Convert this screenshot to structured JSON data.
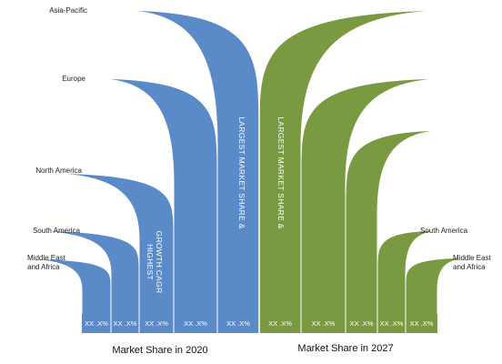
{
  "chart_data": {
    "type": "bar",
    "colors": {
      "year_2020": "#5b8ac9",
      "year_2027": "#7a9a41"
    },
    "series": [
      {
        "name": "Market Share in 2020",
        "categories": [
          "Middle East and Africa",
          "South America",
          "North America",
          "Europe",
          "Asia-Pacific"
        ],
        "value_labels": [
          "XX .X%",
          "XX .X%",
          "XX .X%",
          "XX .X%",
          "XX .X%"
        ],
        "relative_heights": [
          0.2,
          0.29,
          0.5,
          0.83,
          1.0
        ],
        "annotations": {
          "North America": "HIGHEST GROWTH CAGR",
          "Asia-Pacific": "LARGEST MARKET SHARE &"
        }
      },
      {
        "name": "Market Share in 2027",
        "categories": [
          "Asia-Pacific",
          "Europe",
          "North America",
          "South America",
          "Middle East and Africa"
        ],
        "value_labels": [
          "XX .X%",
          "XX .X%",
          "XX .X%",
          "XX .X%",
          "XX .X%"
        ],
        "relative_heights": [
          1.0,
          0.71,
          0.57,
          0.29,
          0.21
        ],
        "annotations": {
          "Asia-Pacific": "LARGEST MARKET SHARE &"
        }
      }
    ],
    "region_labels_left": [
      "Asia-Pacific",
      "Europe",
      "North America",
      "South America",
      "Middle East\nand Africa"
    ],
    "region_labels_right": [
      "South America",
      "Middle East\nand Africa"
    ],
    "captions": [
      "Market Share in  2020",
      "Market Share in  2027"
    ]
  }
}
